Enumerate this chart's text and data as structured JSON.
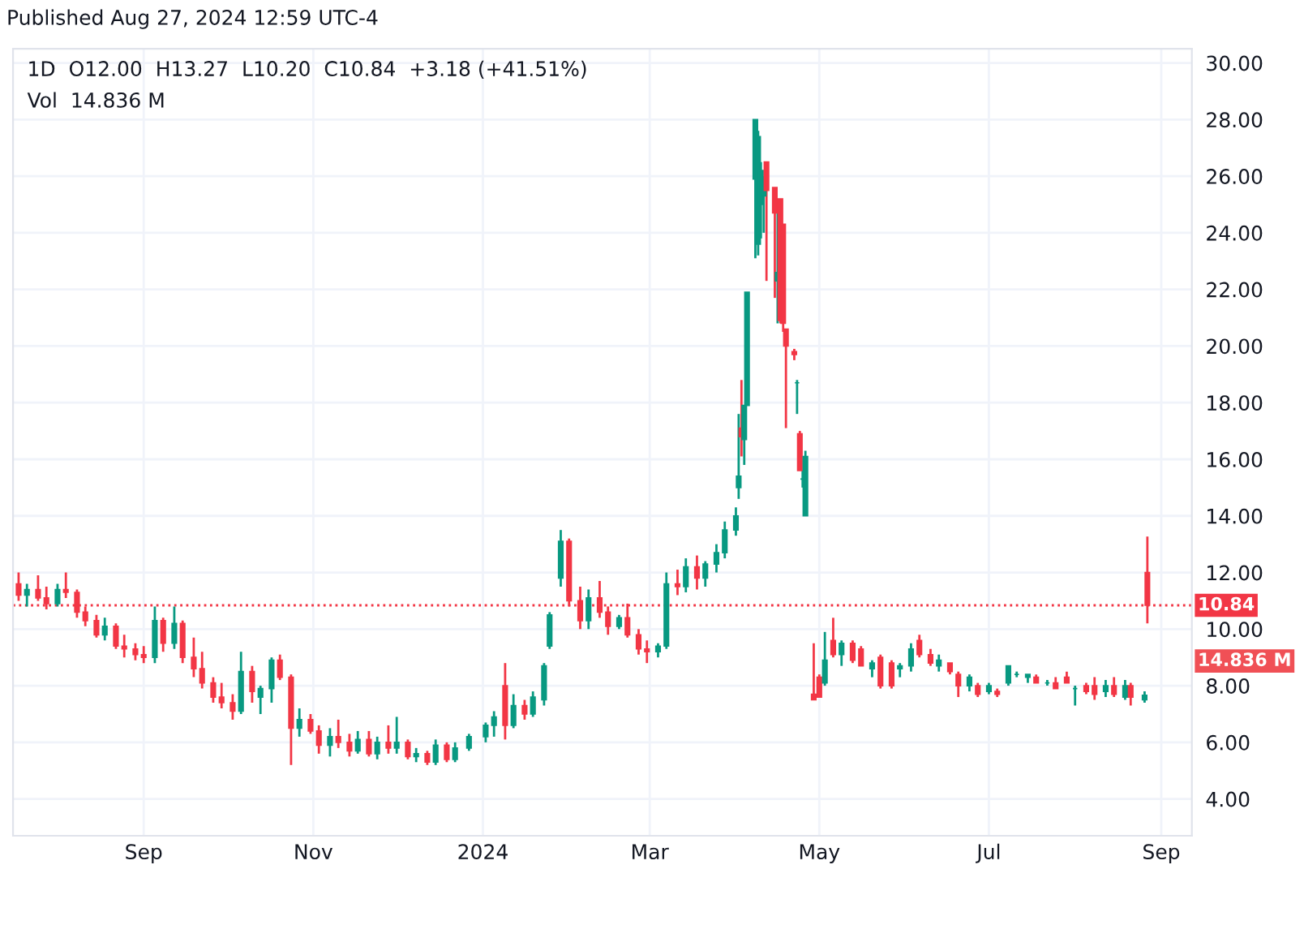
{
  "chart_data": {
    "type": "candlestick",
    "title": "1D  O12.00  H13.27  L10.20  C10.84  +3.18 (+41.51%)",
    "annotations": [
      "Published Aug 27, 2024 12:59 UTC-4",
      "Vol  14.836 M",
      "14.836 M"
    ],
    "x": [
      "2023-07-18",
      "2023-07-21",
      "2023-07-25",
      "2023-07-28",
      "2023-08-01",
      "2023-08-04",
      "2023-08-08",
      "2023-08-11",
      "2023-08-15",
      "2023-08-18",
      "2023-08-22",
      "2023-08-25",
      "2023-08-29",
      "2023-09-01",
      "2023-09-05",
      "2023-09-08",
      "2023-09-12",
      "2023-09-15",
      "2023-09-19",
      "2023-09-22",
      "2023-09-26",
      "2023-09-29",
      "2023-10-03",
      "2023-10-06",
      "2023-10-10",
      "2023-10-13",
      "2023-10-17",
      "2023-10-20",
      "2023-10-24",
      "2023-10-27",
      "2023-10-31",
      "2023-11-03",
      "2023-11-07",
      "2023-11-10",
      "2023-11-14",
      "2023-11-17",
      "2023-11-21",
      "2023-11-24",
      "2023-11-28",
      "2023-12-01",
      "2023-12-05",
      "2023-12-08",
      "2023-12-12",
      "2023-12-15",
      "2023-12-19",
      "2023-12-22",
      "2023-12-27",
      "2024-01-02",
      "2024-01-05",
      "2024-01-09",
      "2024-01-12",
      "2024-01-16",
      "2024-01-19",
      "2024-01-23",
      "2024-01-25",
      "2024-01-29",
      "2024-02-01",
      "2024-02-05",
      "2024-02-08",
      "2024-02-12",
      "2024-02-15",
      "2024-02-19",
      "2024-02-22",
      "2024-02-26",
      "2024-02-29",
      "2024-03-04",
      "2024-03-07",
      "2024-03-11",
      "2024-03-14",
      "2024-03-18",
      "2024-03-21",
      "2024-03-25",
      "2024-03-28",
      "2024-04-01",
      "2024-04-02",
      "2024-04-03",
      "2024-04-04",
      "2024-04-05",
      "2024-04-08",
      "2024-04-09",
      "2024-04-10",
      "2024-04-11",
      "2024-04-12",
      "2024-04-15",
      "2024-04-16",
      "2024-04-17",
      "2024-04-18",
      "2024-04-19",
      "2024-04-22",
      "2024-04-23",
      "2024-04-24",
      "2024-04-25",
      "2024-04-26",
      "2024-04-29",
      "2024-05-01",
      "2024-05-03",
      "2024-05-06",
      "2024-05-09",
      "2024-05-13",
      "2024-05-16",
      "2024-05-20",
      "2024-05-23",
      "2024-05-27",
      "2024-05-30",
      "2024-06-03",
      "2024-06-06",
      "2024-06-10",
      "2024-06-13",
      "2024-06-17",
      "2024-06-20",
      "2024-06-24",
      "2024-06-27",
      "2024-07-01",
      "2024-07-04",
      "2024-07-08",
      "2024-07-11",
      "2024-07-15",
      "2024-07-18",
      "2024-07-22",
      "2024-07-25",
      "2024-07-29",
      "2024-08-01",
      "2024-08-05",
      "2024-08-08",
      "2024-08-12",
      "2024-08-15",
      "2024-08-19",
      "2024-08-21",
      "2024-08-26",
      "2024-08-27"
    ],
    "ohlc": [
      [
        11.6,
        12.0,
        11.0,
        11.2
      ],
      [
        11.2,
        11.6,
        10.8,
        11.4
      ],
      [
        11.4,
        11.9,
        11.0,
        11.1
      ],
      [
        11.1,
        11.5,
        10.7,
        10.9
      ],
      [
        10.9,
        11.6,
        10.8,
        11.4
      ],
      [
        11.4,
        12.0,
        11.1,
        11.3
      ],
      [
        11.3,
        11.4,
        10.4,
        10.6
      ],
      [
        10.6,
        10.8,
        10.1,
        10.3
      ],
      [
        10.3,
        10.5,
        9.7,
        9.8
      ],
      [
        9.8,
        10.4,
        9.6,
        10.1
      ],
      [
        10.1,
        10.2,
        9.3,
        9.4
      ],
      [
        9.4,
        9.8,
        9.0,
        9.3
      ],
      [
        9.3,
        9.5,
        8.9,
        9.1
      ],
      [
        9.1,
        9.4,
        8.8,
        9.0
      ],
      [
        9.0,
        10.8,
        8.8,
        10.3
      ],
      [
        10.3,
        10.4,
        9.2,
        9.5
      ],
      [
        9.5,
        10.8,
        9.3,
        10.2
      ],
      [
        10.2,
        10.3,
        8.8,
        9.0
      ],
      [
        9.0,
        9.7,
        8.3,
        8.6
      ],
      [
        8.6,
        9.2,
        7.9,
        8.1
      ],
      [
        8.1,
        8.3,
        7.4,
        7.6
      ],
      [
        7.6,
        8.1,
        7.2,
        7.4
      ],
      [
        7.4,
        7.7,
        6.8,
        7.1
      ],
      [
        7.1,
        9.2,
        7.0,
        8.5
      ],
      [
        8.5,
        8.7,
        7.4,
        7.8
      ],
      [
        7.6,
        8.0,
        7.0,
        7.9
      ],
      [
        7.9,
        9.0,
        7.4,
        8.9
      ],
      [
        8.9,
        9.1,
        8.2,
        8.3
      ],
      [
        8.3,
        8.4,
        5.2,
        6.5
      ],
      [
        6.5,
        7.2,
        6.2,
        6.8
      ],
      [
        6.8,
        7.0,
        6.3,
        6.4
      ],
      [
        6.4,
        6.6,
        5.6,
        5.9
      ],
      [
        5.9,
        6.5,
        5.5,
        6.2
      ],
      [
        6.2,
        6.8,
        5.8,
        6.0
      ],
      [
        6.0,
        6.3,
        5.5,
        5.7
      ],
      [
        5.7,
        6.4,
        5.6,
        6.1
      ],
      [
        6.1,
        6.4,
        5.5,
        5.6
      ],
      [
        5.6,
        6.2,
        5.4,
        6.0
      ],
      [
        6.0,
        6.6,
        5.6,
        5.8
      ],
      [
        5.8,
        6.9,
        5.6,
        6.0
      ],
      [
        6.0,
        6.1,
        5.4,
        5.5
      ],
      [
        5.5,
        5.8,
        5.3,
        5.6
      ],
      [
        5.6,
        5.7,
        5.2,
        5.3
      ],
      [
        5.3,
        6.1,
        5.2,
        5.9
      ],
      [
        5.9,
        6.0,
        5.3,
        5.4
      ],
      [
        5.4,
        6.0,
        5.3,
        5.8
      ],
      [
        5.8,
        6.3,
        5.7,
        6.2
      ],
      [
        6.2,
        6.7,
        6.0,
        6.6
      ],
      [
        6.6,
        7.1,
        6.2,
        6.9
      ],
      [
        8.0,
        8.8,
        6.1,
        6.6
      ],
      [
        6.6,
        7.7,
        6.5,
        7.3
      ],
      [
        7.3,
        7.5,
        6.8,
        7.0
      ],
      [
        7.0,
        7.8,
        6.9,
        7.6
      ],
      [
        7.5,
        8.8,
        7.3,
        8.7
      ],
      [
        9.4,
        10.6,
        9.3,
        10.5
      ],
      [
        11.8,
        13.5,
        11.5,
        13.1
      ],
      [
        13.1,
        13.2,
        10.8,
        11.0
      ],
      [
        11.0,
        11.5,
        10.0,
        10.3
      ],
      [
        10.3,
        11.4,
        10.0,
        11.1
      ],
      [
        11.1,
        11.7,
        10.4,
        10.6
      ],
      [
        10.6,
        10.8,
        9.8,
        10.1
      ],
      [
        10.1,
        10.5,
        10.0,
        10.4
      ],
      [
        10.4,
        10.9,
        9.7,
        9.8
      ],
      [
        9.8,
        10.0,
        9.1,
        9.3
      ],
      [
        9.3,
        9.6,
        8.8,
        9.2
      ],
      [
        9.2,
        9.5,
        9.0,
        9.4
      ],
      [
        9.4,
        12.0,
        9.3,
        11.6
      ],
      [
        11.6,
        12.1,
        11.2,
        11.5
      ],
      [
        11.5,
        12.5,
        11.3,
        12.2
      ],
      [
        12.2,
        12.6,
        11.4,
        11.8
      ],
      [
        11.8,
        12.4,
        11.5,
        12.3
      ],
      [
        12.3,
        13.0,
        12.0,
        12.7
      ],
      [
        12.7,
        13.8,
        12.5,
        13.5
      ],
      [
        13.5,
        14.3,
        13.3,
        14.0
      ],
      [
        15.0,
        17.6,
        14.6,
        15.4
      ],
      [
        17.1,
        18.8,
        16.1,
        16.8
      ],
      [
        16.7,
        17.9,
        15.8,
        17.9
      ],
      [
        17.9,
        21.9,
        17.9,
        21.9
      ],
      [
        25.9,
        28.0,
        23.1,
        28.0
      ],
      [
        23.6,
        27.6,
        23.2,
        27.4
      ],
      [
        25.0,
        26.5,
        23.8,
        26.2
      ],
      [
        25.3,
        26.0,
        24.0,
        25.6
      ],
      [
        26.5,
        26.5,
        22.3,
        25.5
      ],
      [
        25.6,
        25.6,
        21.7,
        24.7
      ],
      [
        22.3,
        24.7,
        20.8,
        22.6
      ],
      [
        25.2,
        25.2,
        20.8,
        20.9
      ],
      [
        24.3,
        24.3,
        20.5,
        20.8
      ],
      [
        20.6,
        20.6,
        17.1,
        20.0
      ],
      [
        19.8,
        19.9,
        19.5,
        19.7
      ],
      [
        18.7,
        18.8,
        17.6,
        18.7
      ],
      [
        16.9,
        17.0,
        15.6,
        15.6
      ],
      [
        15.3,
        15.6,
        15.0,
        15.3
      ],
      [
        14.0,
        16.3,
        14.0,
        16.1
      ],
      [
        7.7,
        9.5,
        7.5,
        7.5
      ],
      [
        8.3,
        8.4,
        7.6,
        7.6
      ],
      [
        8.1,
        9.9,
        8.0,
        8.9
      ],
      [
        9.6,
        10.4,
        9.0,
        9.1
      ],
      [
        9.1,
        9.6,
        8.7,
        9.5
      ],
      [
        9.5,
        9.6,
        8.8,
        8.9
      ],
      [
        9.3,
        9.4,
        8.7,
        8.7
      ],
      [
        8.6,
        8.9,
        8.3,
        8.8
      ],
      [
        9.0,
        9.1,
        7.9,
        8.0
      ],
      [
        8.8,
        8.9,
        7.9,
        8.0
      ],
      [
        8.6,
        8.8,
        8.3,
        8.7
      ],
      [
        8.7,
        9.5,
        8.5,
        9.3
      ],
      [
        9.6,
        9.8,
        9.0,
        9.1
      ],
      [
        9.1,
        9.3,
        8.7,
        8.8
      ],
      [
        8.7,
        9.1,
        8.5,
        8.9
      ],
      [
        8.8,
        8.8,
        8.4,
        8.5
      ],
      [
        8.4,
        8.5,
        7.6,
        8.0
      ],
      [
        8.0,
        8.4,
        7.8,
        8.3
      ],
      [
        8.0,
        8.1,
        7.6,
        7.7
      ],
      [
        7.8,
        8.1,
        7.7,
        8.0
      ],
      [
        7.8,
        7.9,
        7.6,
        7.7
      ],
      [
        8.1,
        8.7,
        8.0,
        8.7
      ],
      [
        8.4,
        8.5,
        8.3,
        8.4
      ],
      [
        8.3,
        8.4,
        8.1,
        8.4
      ],
      [
        8.3,
        8.4,
        8.1,
        8.1
      ],
      [
        8.1,
        8.2,
        8.0,
        8.1
      ],
      [
        8.1,
        8.3,
        7.9,
        7.9
      ],
      [
        8.3,
        8.5,
        8.1,
        8.1
      ],
      [
        7.9,
        8.0,
        7.3,
        7.9
      ],
      [
        8.0,
        8.1,
        7.7,
        7.8
      ],
      [
        8.0,
        8.3,
        7.5,
        7.7
      ],
      [
        7.8,
        8.2,
        7.6,
        8.0
      ],
      [
        8.0,
        8.3,
        7.6,
        7.7
      ],
      [
        7.6,
        8.2,
        7.5,
        8.0
      ],
      [
        8.0,
        8.1,
        7.3,
        7.6
      ],
      [
        7.5,
        7.8,
        7.4,
        7.66
      ],
      [
        12.0,
        13.27,
        10.2,
        10.84
      ]
    ],
    "colors": [
      "#f23645",
      "#089981",
      "#f23645",
      "#f23645",
      "#089981",
      "#f23645",
      "#f23645",
      "#f23645",
      "#f23645",
      "#089981",
      "#f23645",
      "#f23645",
      "#f23645",
      "#f23645",
      "#089981",
      "#f23645",
      "#089981",
      "#f23645",
      "#f23645",
      "#f23645",
      "#f23645",
      "#f23645",
      "#f23645",
      "#089981",
      "#f23645",
      "#089981",
      "#089981",
      "#f23645",
      "#f23645",
      "#089981",
      "#f23645",
      "#f23645",
      "#089981",
      "#f23645",
      "#f23645",
      "#089981",
      "#f23645",
      "#089981",
      "#f23645",
      "#089981",
      "#f23645",
      "#089981",
      "#f23645",
      "#089981",
      "#f23645",
      "#089981",
      "#089981",
      "#089981",
      "#089981",
      "#f23645",
      "#089981",
      "#f23645",
      "#089981",
      "#089981",
      "#089981",
      "#089981",
      "#f23645",
      "#f23645",
      "#089981",
      "#f23645",
      "#f23645",
      "#089981",
      "#f23645",
      "#f23645",
      "#f23645",
      "#089981",
      "#089981",
      "#f23645",
      "#089981",
      "#f23645",
      "#089981",
      "#089981",
      "#089981",
      "#089981",
      "#089981",
      "#f23645",
      "#089981",
      "#089981",
      "#089981",
      "#089981",
      "#089981",
      "#089981",
      "#f23645",
      "#f23645",
      "#089981",
      "#f23645",
      "#f23645",
      "#f23645",
      "#f23645",
      "#089981",
      "#f23645",
      "#089981",
      "#089981",
      "#f23645",
      "#f23645",
      "#089981",
      "#f23645",
      "#089981",
      "#f23645",
      "#f23645",
      "#089981",
      "#f23645",
      "#f23645",
      "#089981",
      "#089981",
      "#f23645",
      "#f23645",
      "#089981",
      "#f23645",
      "#f23645",
      "#089981",
      "#f23645",
      "#089981",
      "#f23645",
      "#089981",
      "#089981",
      "#089981",
      "#f23645",
      "#089981",
      "#f23645",
      "#f23645",
      "#089981",
      "#f23645",
      "#f23645",
      "#089981",
      "#f23645",
      "#089981",
      "#f23645",
      "#089981",
      "#f23645"
    ],
    "xlim": [
      "2023-07-16",
      "2024-09-12"
    ],
    "xticks": [
      {
        "value": "2023-09-01",
        "label": "Sep"
      },
      {
        "value": "2023-11-01",
        "label": "Nov"
      },
      {
        "value": "2024-01-01",
        "label": "2024"
      },
      {
        "value": "2024-03-01",
        "label": "Mar"
      },
      {
        "value": "2024-05-01",
        "label": "May"
      },
      {
        "value": "2024-07-01",
        "label": "Jul"
      },
      {
        "value": "2024-09-01",
        "label": "Sep"
      }
    ],
    "ylim": [
      2.7,
      30.5
    ],
    "yticks": [
      {
        "value": 4,
        "label": "4.00"
      },
      {
        "value": 6,
        "label": "6.00"
      },
      {
        "value": 8,
        "label": "8.00"
      },
      {
        "value": 10,
        "label": "10.00"
      },
      {
        "value": 12,
        "label": "12.00"
      },
      {
        "value": 14,
        "label": "14.00"
      },
      {
        "value": 16,
        "label": "16.00"
      },
      {
        "value": 18,
        "label": "18.00"
      },
      {
        "value": 20,
        "label": "20.00"
      },
      {
        "value": 22,
        "label": "22.00"
      },
      {
        "value": 24,
        "label": "24.00"
      },
      {
        "value": 26,
        "label": "26.00"
      },
      {
        "value": 28,
        "label": "28.00"
      },
      {
        "value": 30,
        "label": "30.00"
      }
    ],
    "ref_lines": [
      {
        "axis": "y",
        "value": 10.84,
        "label": "10.84",
        "color": "#f23645",
        "line_style": "dotted"
      }
    ],
    "grid": true
  }
}
